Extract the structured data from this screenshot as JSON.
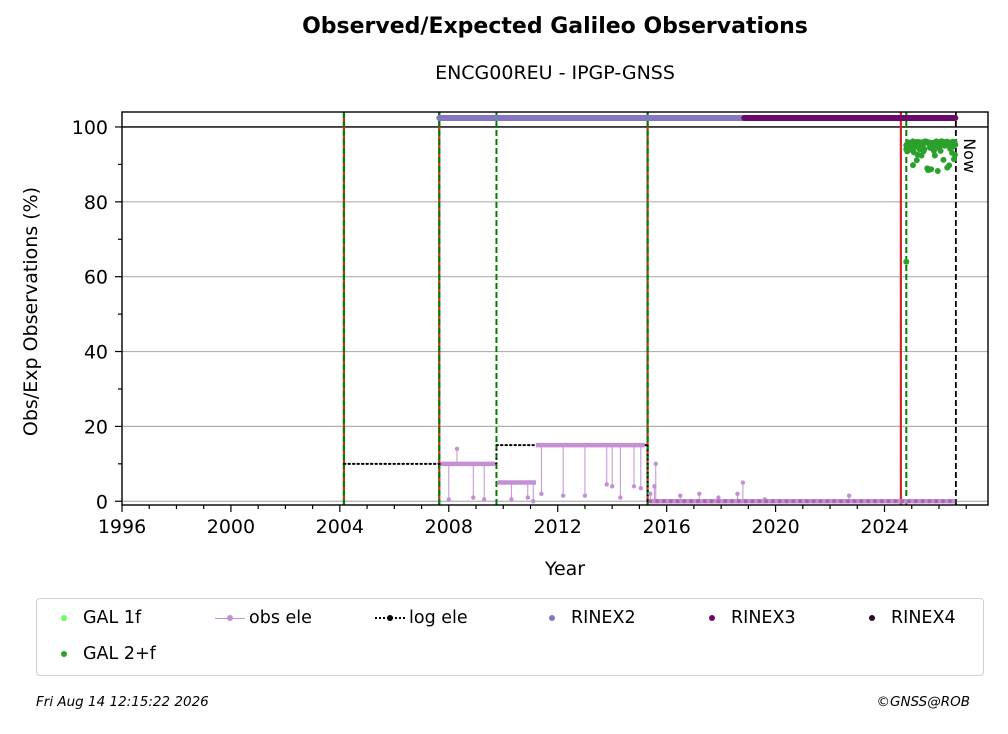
{
  "chart_data": {
    "type": "scatter",
    "title": "Observed/Expected Galileo Observations",
    "subtitle": "ENCG00REU - IPGP-GNSS",
    "xlabel": "Year",
    "ylabel": "Obs/Exp Observations (%)",
    "xlim": [
      1996,
      2027.8
    ],
    "ylim": [
      -1,
      104
    ],
    "x_ticks": [
      "1996",
      "2000",
      "2004",
      "2008",
      "2012",
      "2016",
      "2020",
      "2024"
    ],
    "y_ticks": [
      "0",
      "20",
      "40",
      "60",
      "80",
      "100"
    ],
    "grid": "horizontal",
    "now_label": "Now",
    "now_year": 2026.62,
    "reference_line": 100,
    "vertical_lines": [
      {
        "year": 2004.15,
        "style": "red-green-dashed"
      },
      {
        "year": 2007.65,
        "style": "red-green-dashed"
      },
      {
        "year": 2009.75,
        "style": "green-dashed"
      },
      {
        "year": 2015.3,
        "style": "red-green-dashed"
      },
      {
        "year": 2024.6,
        "style": "red-solid"
      },
      {
        "year": 2024.8,
        "style": "green-dashed"
      }
    ],
    "log_ele": {
      "name": "log ele",
      "segments": [
        {
          "from": 2004.15,
          "to": 2007.65,
          "value": 10
        },
        {
          "from": 2007.65,
          "to": 2009.75,
          "value": 10
        },
        {
          "from": 2009.75,
          "to": 2015.3,
          "value": 15
        },
        {
          "from": 2015.3,
          "to": 2026.62,
          "value": 0
        }
      ]
    },
    "obs_ele": {
      "name": "obs ele",
      "segments": [
        {
          "from": 2007.7,
          "to": 2009.7,
          "value": 10
        },
        {
          "from": 2009.8,
          "to": 2011.2,
          "value": 5
        },
        {
          "from": 2011.2,
          "to": 2015.2,
          "value": 15
        },
        {
          "from": 2015.4,
          "to": 2026.6,
          "value": 0
        }
      ],
      "outliers": [
        {
          "x": 2008.0,
          "y": 0.5
        },
        {
          "x": 2008.3,
          "y": 14
        },
        {
          "x": 2008.9,
          "y": 1
        },
        {
          "x": 2009.3,
          "y": 0.5
        },
        {
          "x": 2010.3,
          "y": 0.5
        },
        {
          "x": 2010.9,
          "y": 1
        },
        {
          "x": 2011.1,
          "y": 0
        },
        {
          "x": 2011.4,
          "y": 2
        },
        {
          "x": 2012.2,
          "y": 1.5
        },
        {
          "x": 2013.0,
          "y": 1.5
        },
        {
          "x": 2013.8,
          "y": 4.5
        },
        {
          "x": 2014.0,
          "y": 4
        },
        {
          "x": 2014.3,
          "y": 1
        },
        {
          "x": 2014.8,
          "y": 4
        },
        {
          "x": 2015.05,
          "y": 3.5
        },
        {
          "x": 2015.4,
          "y": 2
        },
        {
          "x": 2015.6,
          "y": 10
        },
        {
          "x": 2015.55,
          "y": 4
        },
        {
          "x": 2016.5,
          "y": 1.5
        },
        {
          "x": 2017.2,
          "y": 2
        },
        {
          "x": 2017.9,
          "y": 1
        },
        {
          "x": 2018.6,
          "y": 2
        },
        {
          "x": 2018.8,
          "y": 5
        },
        {
          "x": 2019.6,
          "y": 0.5
        },
        {
          "x": 2022.7,
          "y": 1.5
        }
      ]
    },
    "gal_2f": {
      "name": "GAL 2+f",
      "from": 2024.8,
      "to": 2026.6,
      "band": [
        88,
        96
      ],
      "outliers": [
        {
          "x": 2024.8,
          "y": 64
        }
      ]
    },
    "gal_1f": {
      "name": "GAL 1f"
    },
    "rinex_bars": [
      {
        "name": "RINEX2",
        "from": 2007.65,
        "to": 2018.85
      },
      {
        "name": "RINEX3",
        "from": 2018.85,
        "to": 2026.6
      }
    ],
    "legend_placement": "below",
    "legend": [
      {
        "name": "GAL 1f",
        "color": "#66ff66",
        "kind": "dot"
      },
      {
        "name": "obs ele",
        "color": "#c48fd5",
        "kind": "line-dot"
      },
      {
        "name": "log ele",
        "color": "#000000",
        "kind": "dotted-dot"
      },
      {
        "name": "RINEX2",
        "color": "#8576c4",
        "kind": "dot"
      },
      {
        "name": "RINEX3",
        "color": "#6b0a6b",
        "kind": "dot"
      },
      {
        "name": "RINEX4",
        "color": "#2a0a2a",
        "kind": "dot"
      },
      {
        "name": "GAL 2+f",
        "color": "#2ca02c",
        "kind": "dot"
      }
    ],
    "colors": {
      "gal_1f": "#66ff66",
      "gal_2f": "#2ca02c",
      "obs_ele": "#c48fd5",
      "log_ele": "#000000",
      "rinex2": "#8576c4",
      "rinex3": "#6b0a6b",
      "rinex4": "#2a0a2a",
      "red_line": "#d62728",
      "green_line": "#008000",
      "grid": "#b0b0b0"
    }
  },
  "footer": {
    "timestamp": "Fri Aug 14 12:15:22 2026",
    "copyright": "©GNSS@ROB"
  }
}
